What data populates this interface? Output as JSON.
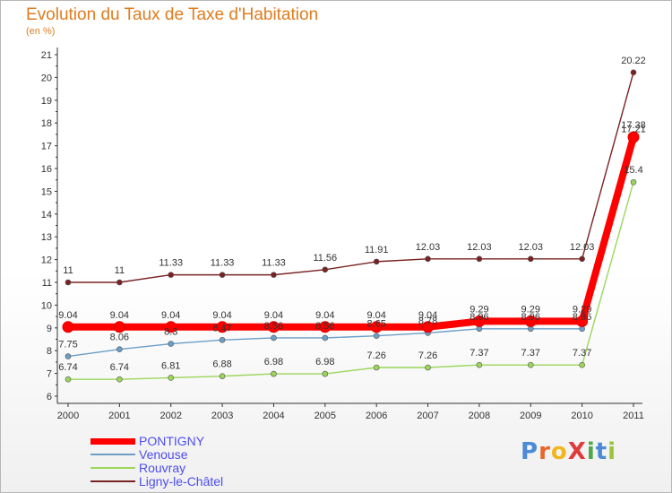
{
  "chart_data": {
    "type": "line",
    "title": "Evolution du Taux de Taxe d'Habitation",
    "subtitle": "(en %)",
    "x": [
      "2000",
      "2001",
      "2002",
      "2003",
      "2004",
      "2005",
      "2006",
      "2007",
      "2008",
      "2009",
      "2010",
      "2011"
    ],
    "ylim": [
      6,
      21
    ],
    "yticks": [
      6,
      7,
      8,
      9,
      10,
      11,
      12,
      13,
      14,
      15,
      16,
      17,
      18,
      19,
      20,
      21
    ],
    "grid": false,
    "legend_position": "bottom-left",
    "series": [
      {
        "name": "Ligny-le-Châtel",
        "color": "#7a2222",
        "values": [
          11,
          11,
          11.33,
          11.33,
          11.33,
          11.56,
          11.91,
          12.03,
          12.03,
          12.03,
          12.03,
          20.22
        ],
        "labels": [
          "11",
          "11",
          "11.33",
          "11.33",
          "11.33",
          "11.56",
          "11.91",
          "12.03",
          "12.03",
          "12.03",
          "12.03",
          "20.22"
        ]
      },
      {
        "name": "Rouvray",
        "color": "#9bd65a",
        "values": [
          6.74,
          6.74,
          6.81,
          6.88,
          6.98,
          6.98,
          7.26,
          7.26,
          7.37,
          7.37,
          7.37,
          15.4
        ],
        "labels": [
          "6.74",
          "6.74",
          "6.81",
          "6.88",
          "6.98",
          "6.98",
          "7.26",
          "7.26",
          "7.37",
          "7.37",
          "7.37",
          "15.4"
        ]
      },
      {
        "name": "Venouse",
        "color": "#6c9ec6",
        "values": [
          7.75,
          8.06,
          8.3,
          8.47,
          8.56,
          8.56,
          8.65,
          8.78,
          8.96,
          8.96,
          8.96,
          17.21
        ],
        "labels": [
          "7.75",
          "8.06",
          "8.3",
          "8.47",
          "8.56",
          "8.56",
          "8.65",
          "8.78",
          "8.96",
          "8.96",
          "8.96",
          "17.21"
        ]
      },
      {
        "name": "PONTIGNY",
        "color": "#ff0000",
        "values": [
          9.04,
          9.04,
          9.04,
          9.04,
          9.04,
          9.04,
          9.04,
          9.04,
          9.29,
          9.29,
          9.29,
          17.38
        ],
        "labels": [
          "9.04",
          "9.04",
          "9.04",
          "9.04",
          "9.04",
          "9.04",
          "9.04",
          "9.04",
          "9.29",
          "9.29",
          "9.29",
          "17.38"
        ]
      }
    ]
  },
  "legend": {
    "items": [
      {
        "label": "PONTIGNY",
        "color": "#ff0000",
        "text_color": "#4d4df0"
      },
      {
        "label": "Venouse",
        "color": "#6c9ec6",
        "text_color": "#4d4df0"
      },
      {
        "label": "Rouvray",
        "color": "#9bd65a",
        "text_color": "#4d4df0"
      },
      {
        "label": "Ligny-le-Châtel",
        "color": "#7a2222",
        "text_color": "#4d4df0"
      }
    ]
  },
  "logo": {
    "text": "ProXiti"
  }
}
